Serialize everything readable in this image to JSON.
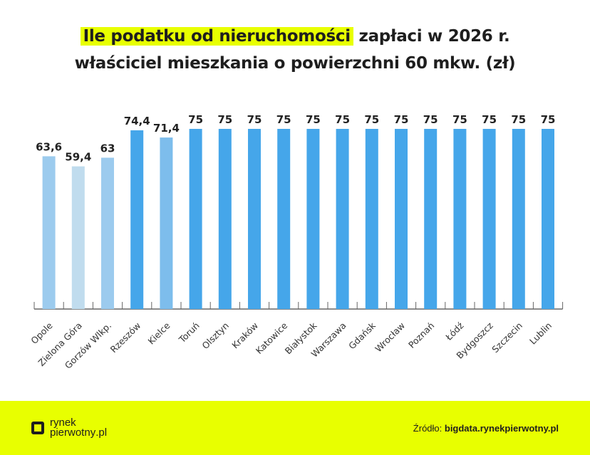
{
  "title": {
    "highlight": "Ile podatku od nieruchomości",
    "line1_rest": " zapłaci w 2026 r.",
    "line2": "właściciel mieszkania o powierzchni 60 mkw. (zł)"
  },
  "chart_data": {
    "type": "bar",
    "title": "Ile podatku od nieruchomości zapłaci w 2026 r. właściciel mieszkania o powierzchni 60 mkw. (zł)",
    "categories": [
      "Opole",
      "Zielona Góra",
      "Gorzów Wlkp.",
      "Rzeszów",
      "Kielce",
      "Toruń",
      "Olsztyn",
      "Kraków",
      "Katowice",
      "Białystok",
      "Warszawa",
      "Gdańsk",
      "Wrocław",
      "Poznań",
      "Łódź",
      "Bydgoszcz",
      "Szczecin",
      "Lublin"
    ],
    "values": [
      63.6,
      59.4,
      63,
      74.4,
      71.4,
      75,
      75,
      75,
      75,
      75,
      75,
      75,
      75,
      75,
      75,
      75,
      75,
      75
    ],
    "labels": [
      "63,6",
      "59,4",
      "63",
      "74,4",
      "71,4",
      "75",
      "75",
      "75",
      "75",
      "75",
      "75",
      "75",
      "75",
      "75",
      "75",
      "75",
      "75",
      "75"
    ],
    "colors": [
      "#9ccbee",
      "#c0dcee",
      "#9ccbee",
      "#45a6ea",
      "#7dbdec",
      "#45a6ea",
      "#45a6ea",
      "#45a6ea",
      "#45a6ea",
      "#45a6ea",
      "#45a6ea",
      "#45a6ea",
      "#45a6ea",
      "#45a6ea",
      "#45a6ea",
      "#45a6ea",
      "#45a6ea",
      "#45a6ea"
    ],
    "ylim": [
      0,
      75
    ],
    "grid": false,
    "xlabel": "",
    "ylabel": ""
  },
  "footer": {
    "logo_line1": "rynek",
    "logo_line2": "pierwotny",
    "logo_suffix": ".pl",
    "source_label": "Źródło: ",
    "source_value": "bigdata.rynekpierwotny.pl",
    "background": "#e8ff00"
  }
}
